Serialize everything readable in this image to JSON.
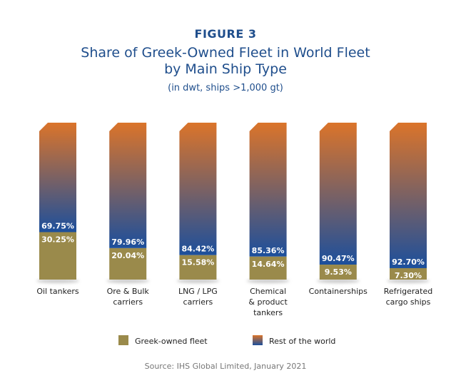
{
  "figure_label": "FIGURE 3",
  "chart_data": {
    "type": "bar",
    "stacked": true,
    "title": "Share of Greek-Owned Fleet in World Fleet by Main Ship Type",
    "title_lines": [
      "Share of Greek-Owned Fleet in World Fleet",
      "by Main Ship Type"
    ],
    "subtitle": "(in dwt, ships >1,000 gt)",
    "categories": [
      [
        "Oil tankers"
      ],
      [
        "Ore & Bulk",
        "carriers"
      ],
      [
        "LNG / LPG",
        "carriers"
      ],
      [
        "Chemical",
        "& product",
        "tankers"
      ],
      [
        "Containerships"
      ],
      [
        "Refrigerated",
        "cargo ships"
      ]
    ],
    "series": [
      {
        "name": "Greek-owned fleet",
        "values": [
          30.25,
          20.04,
          15.58,
          14.64,
          9.53,
          7.3
        ],
        "labels": [
          "30.25%",
          "20.04%",
          "15.58%",
          "14.64%",
          "9.53%",
          "7.30%"
        ],
        "color": "#9a8a4b"
      },
      {
        "name": "Rest of the world",
        "values": [
          69.75,
          79.96,
          84.42,
          85.36,
          90.47,
          92.7
        ],
        "labels": [
          "69.75%",
          "79.96%",
          "84.42%",
          "85.36%",
          "90.47%",
          "92.70%"
        ],
        "color_top": "#db742a",
        "color_bottom": "#1c4f9c"
      }
    ],
    "ylim": [
      0,
      100
    ],
    "grid": false,
    "legend_position": "bottom"
  },
  "source": "Source: IHS Global Limited, January 2021"
}
